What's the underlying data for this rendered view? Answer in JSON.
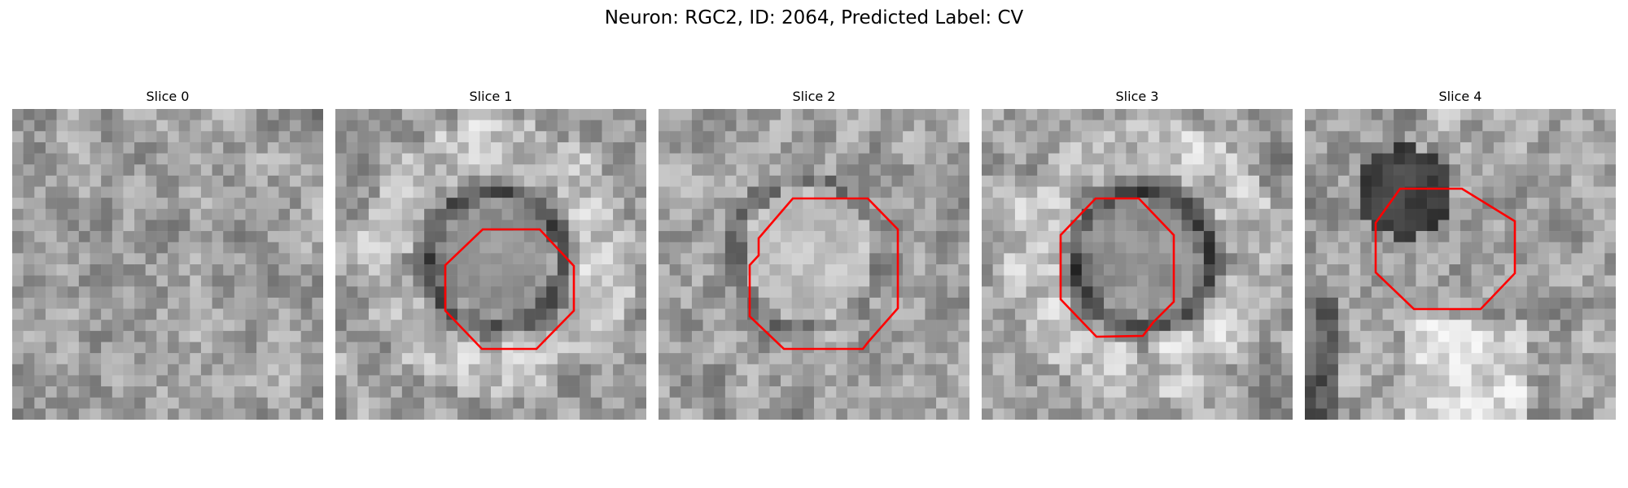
{
  "figure": {
    "title": "Neuron: RGC2, ID: 2064, Predicted Label: CV"
  },
  "panels": [
    {
      "title": "Slice 0",
      "overlay": "none",
      "texture": "noisy"
    },
    {
      "title": "Slice 1",
      "overlay": "red-octagon",
      "texture": "ring"
    },
    {
      "title": "Slice 2",
      "overlay": "red-octagon",
      "texture": "bright-blob"
    },
    {
      "title": "Slice 3",
      "overlay": "red-octagon",
      "texture": "ring"
    },
    {
      "title": "Slice 4",
      "overlay": "red-octagon",
      "texture": "dark-blob"
    }
  ],
  "colors": {
    "contour": "#ff0000",
    "background": "#ffffff"
  }
}
